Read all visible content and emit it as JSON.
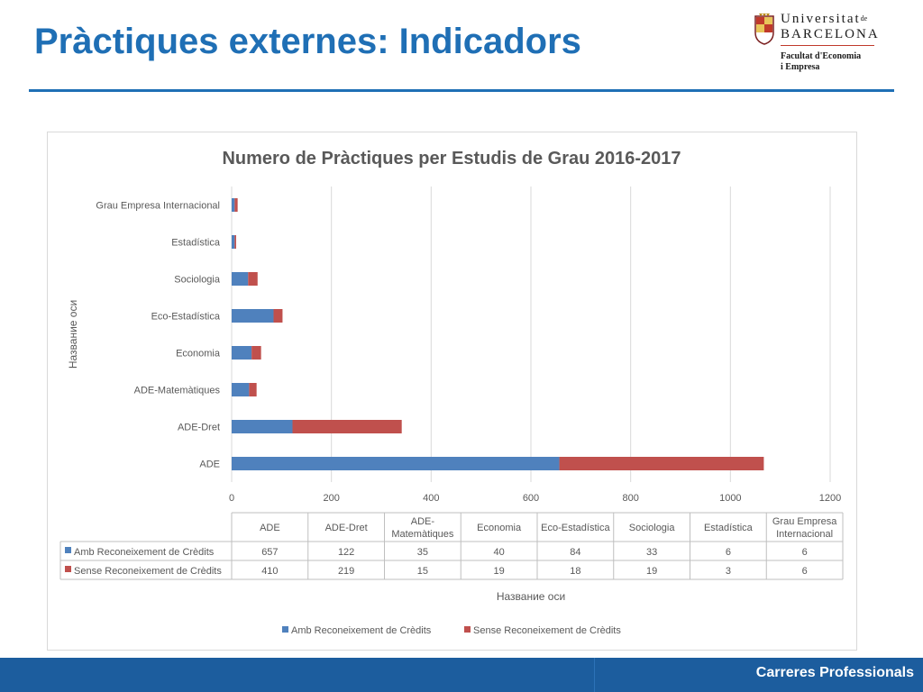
{
  "slide": {
    "title": "Pràctiques externes: Indicadors",
    "footer": "Carreres Professionals"
  },
  "logo": {
    "line1": "Universitat",
    "line1_suffix": "de",
    "line2": "BARCELONA",
    "faculty_line1": "Facultat d'Economia",
    "faculty_line2": "i Empresa"
  },
  "colors": {
    "title": "#1f6fb5",
    "footer": "#1c5d9e",
    "series1": "#4f81bd",
    "series2": "#c0504d"
  },
  "chart_data": {
    "type": "bar",
    "orientation": "horizontal",
    "stacked": true,
    "title": "Numero de Pràctiques per Estudis de Grau 2016-2017",
    "xlabel": "Название оси",
    "ylabel": "Название оси",
    "xlim": [
      0,
      1200
    ],
    "xticks": [
      0,
      200,
      400,
      600,
      800,
      1000,
      1200
    ],
    "grid": true,
    "legend_position": "bottom",
    "data_table": true,
    "categories": [
      "ADE",
      "ADE-Dret",
      "ADE-Matemàtiques",
      "Economia",
      "Eco-Estadística",
      "Sociologia",
      "Estadística",
      "Grau Empresa Internacional"
    ],
    "table_headers": [
      [
        "ADE"
      ],
      [
        "ADE-Dret"
      ],
      [
        "ADE-",
        "Matemàtiques"
      ],
      [
        "Economia"
      ],
      [
        "Eco-Estadística"
      ],
      [
        "Sociologia"
      ],
      [
        "Estadística"
      ],
      [
        "Grau Empresa",
        "Internacional"
      ]
    ],
    "series": [
      {
        "name": "Amb Reconeixement de Crèdits",
        "values": [
          657,
          122,
          35,
          40,
          84,
          33,
          6,
          6
        ],
        "color": "#4f81bd"
      },
      {
        "name": "Sense Reconeixement de Crèdits",
        "values": [
          410,
          219,
          15,
          19,
          18,
          19,
          3,
          6
        ],
        "color": "#c0504d"
      }
    ]
  }
}
